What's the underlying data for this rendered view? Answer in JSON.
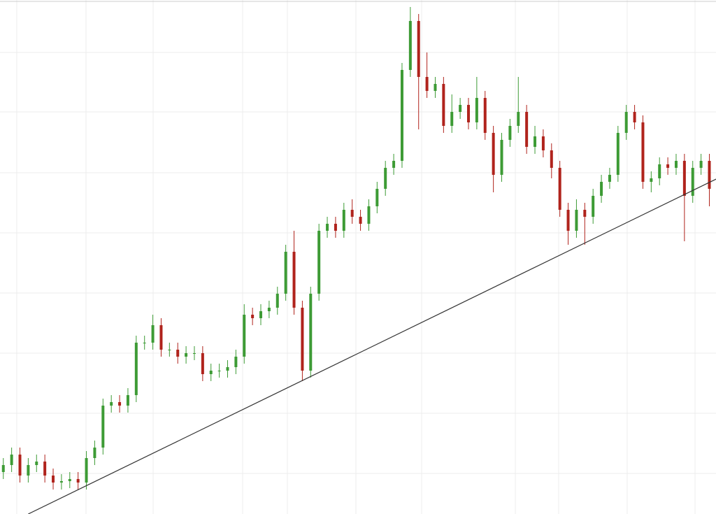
{
  "chart_data": {
    "type": "candlestick",
    "open": [
      60,
      70,
      85,
      55,
      70,
      75,
      55,
      45,
      47,
      50,
      45,
      80,
      95,
      155,
      160,
      155,
      170,
      245,
      245,
      270,
      235,
      235,
      225,
      230,
      230,
      200,
      205,
      205,
      210,
      225,
      285,
      280,
      290,
      295,
      315,
      375,
      295,
      205,
      315,
      405,
      415,
      405,
      435,
      425,
      415,
      440,
      465,
      495,
      505,
      635,
      705,
      625,
      605,
      615,
      555,
      575,
      585,
      560,
      595,
      545,
      485,
      535,
      555,
      575,
      525,
      540,
      520,
      495,
      435,
      405,
      435,
      425,
      455,
      475,
      485,
      545,
      575,
      560,
      475,
      480,
      500,
      495,
      505,
      455,
      495,
      505
    ],
    "high": [
      80,
      95,
      95,
      80,
      85,
      85,
      65,
      57,
      60,
      60,
      90,
      105,
      165,
      170,
      170,
      180,
      255,
      255,
      285,
      280,
      245,
      245,
      240,
      240,
      240,
      215,
      215,
      220,
      235,
      300,
      295,
      300,
      305,
      325,
      385,
      405,
      305,
      325,
      415,
      425,
      425,
      445,
      450,
      435,
      450,
      475,
      505,
      515,
      645,
      725,
      715,
      660,
      625,
      625,
      600,
      595,
      595,
      625,
      605,
      555,
      545,
      565,
      625,
      585,
      555,
      550,
      530,
      505,
      445,
      450,
      445,
      465,
      485,
      495,
      555,
      585,
      585,
      570,
      490,
      510,
      510,
      515,
      515,
      505,
      515,
      515
    ],
    "low": [
      50,
      60,
      45,
      45,
      60,
      45,
      35,
      35,
      37,
      35,
      35,
      70,
      85,
      145,
      145,
      145,
      160,
      235,
      235,
      225,
      225,
      215,
      215,
      220,
      190,
      190,
      195,
      195,
      200,
      215,
      270,
      270,
      280,
      285,
      305,
      285,
      190,
      195,
      305,
      395,
      395,
      395,
      415,
      405,
      405,
      430,
      455,
      485,
      495,
      625,
      550,
      595,
      595,
      545,
      545,
      565,
      550,
      550,
      535,
      460,
      475,
      525,
      545,
      515,
      515,
      510,
      480,
      425,
      385,
      395,
      385,
      415,
      445,
      465,
      475,
      535,
      550,
      465,
      460,
      470,
      485,
      485,
      390,
      445,
      485,
      440
    ],
    "close": [
      70,
      85,
      55,
      70,
      75,
      55,
      45,
      47,
      50,
      45,
      80,
      95,
      155,
      160,
      155,
      170,
      245,
      245,
      270,
      235,
      235,
      225,
      230,
      230,
      200,
      205,
      205,
      210,
      225,
      285,
      280,
      290,
      295,
      315,
      375,
      295,
      205,
      315,
      405,
      415,
      405,
      435,
      425,
      415,
      440,
      465,
      495,
      505,
      635,
      705,
      625,
      605,
      615,
      555,
      575,
      585,
      560,
      595,
      545,
      485,
      535,
      555,
      575,
      525,
      540,
      520,
      495,
      435,
      405,
      435,
      425,
      455,
      475,
      485,
      545,
      575,
      560,
      475,
      480,
      500,
      495,
      505,
      455,
      495,
      505,
      465
    ],
    "up_color": "#3d9b35",
    "down_color": "#b0231c",
    "xlim": [
      -0.4,
      85.8
    ],
    "ylim": [
      0,
      735
    ],
    "grid": true,
    "trendline": {
      "x": [
        3,
        86
      ],
      "y": [
        0,
        480
      ],
      "color": "#333333"
    }
  }
}
